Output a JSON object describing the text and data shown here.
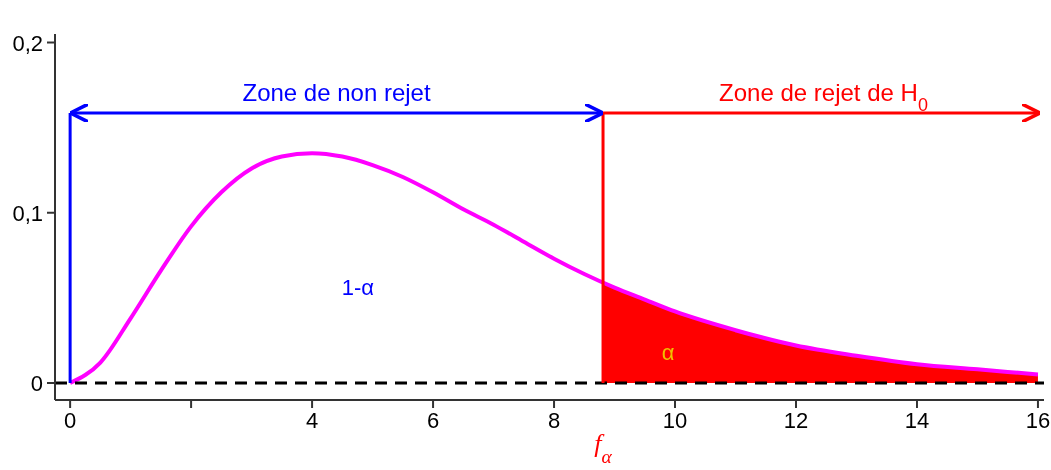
{
  "chart_data": {
    "type": "line",
    "xlim": [
      -0.25,
      16.1
    ],
    "ylim": [
      -0.01,
      0.205
    ],
    "xticks": [
      0,
      {
        "value": 2,
        "label": null
      },
      4,
      6,
      8,
      10,
      12,
      14,
      16
    ],
    "yticks": [
      {
        "value": 0,
        "label": "0"
      },
      {
        "value": 0.1,
        "label": "0,1"
      },
      {
        "value": 0.2,
        "label": "0,2"
      }
    ],
    "grid": false,
    "marker": "none",
    "series": [
      {
        "type": "area",
        "color": "#ff0000",
        "x": [
          8.81,
          9,
          9.5,
          10,
          11,
          12,
          13,
          14,
          15,
          16
        ],
        "values": [
          0.059,
          0.056,
          0.049,
          0.042,
          0.031,
          0.022,
          0.016,
          0.011,
          0.008,
          0.005
        ]
      },
      {
        "color": "#ff00ff",
        "x": [
          0,
          0.5,
          1,
          1.5,
          2,
          2.5,
          3,
          3.5,
          4,
          4.5,
          5,
          5.5,
          6,
          6.5,
          7,
          7.5,
          8,
          8.5,
          9,
          9.5,
          10,
          11,
          12,
          13,
          14,
          15,
          16
        ],
        "values": [
          0,
          0.012,
          0.038,
          0.066,
          0.092,
          0.112,
          0.126,
          0.133,
          0.135,
          0.133,
          0.128,
          0.121,
          0.112,
          0.102,
          0.093,
          0.083,
          0.073,
          0.064,
          0.056,
          0.049,
          0.042,
          0.031,
          0.022,
          0.016,
          0.011,
          0.008,
          0.005
        ]
      }
    ],
    "ref_lines": [
      {
        "axis": "y",
        "value": 0,
        "color": "#000000",
        "line_style": "dashed"
      },
      {
        "axis": "x",
        "value": 0,
        "color": "#0000ff"
      },
      {
        "axis": "x",
        "value": 8.81,
        "label": "f$_{α}$",
        "color": "#ff0000"
      }
    ],
    "annotations": [
      "Zone de non rejet",
      "Zone de rejet de H$_{0}$",
      "1-α",
      "α"
    ]
  }
}
